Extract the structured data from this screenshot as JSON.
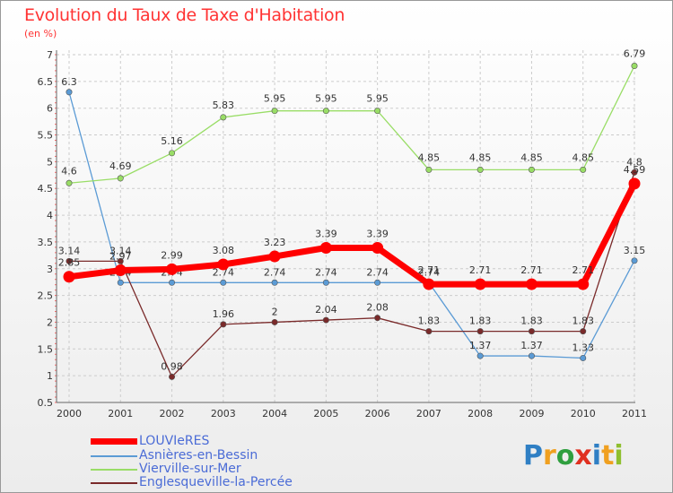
{
  "chart_title": "Evolution du Taux de Taxe d'Habitation",
  "chart_subtitle": "(en %)",
  "chart_data": {
    "type": "line",
    "title": "Evolution du Taux de Taxe d'Habitation",
    "ylabel": "(en %)",
    "xlabel": "",
    "categories": [
      "2000",
      "2001",
      "2002",
      "2003",
      "2004",
      "2005",
      "2006",
      "2007",
      "2008",
      "2009",
      "2010",
      "2011"
    ],
    "y_ticks": [
      "0.5",
      "1",
      "1.5",
      "2",
      "2.5",
      "3",
      "3.5",
      "4",
      "4.5",
      "5",
      "5.5",
      "6",
      "6.5",
      "7"
    ],
    "ylim": [
      0.5,
      7
    ],
    "grid": "horizontal dashed",
    "series": [
      {
        "name": "LOUVIeRES",
        "color": "#ff0000",
        "values": [
          2.85,
          2.97,
          2.99,
          3.08,
          3.23,
          3.39,
          3.39,
          2.71,
          2.71,
          2.71,
          2.71,
          4.59
        ],
        "labels": [
          "2.85",
          "2.97",
          "2.99",
          "3.08",
          "3.23",
          "3.39",
          "3.39",
          "2.71",
          "2.71",
          "2.71",
          "2.71",
          "4.59"
        ]
      },
      {
        "name": "Asnières-en-Bessin",
        "color": "#5b9bd5",
        "values": [
          6.3,
          2.74,
          2.74,
          2.74,
          2.74,
          2.74,
          2.74,
          2.74,
          1.37,
          1.37,
          1.33,
          3.15
        ],
        "labels": [
          "6.3",
          "2.74",
          "2.74",
          "2.74",
          "2.74",
          "2.74",
          "2.74",
          "2.74",
          "1.37",
          "1.37",
          "1.33",
          "3.15"
        ]
      },
      {
        "name": "Vierville-sur-Mer",
        "color": "#99dd66",
        "values": [
          4.6,
          4.69,
          5.16,
          5.83,
          5.95,
          5.95,
          5.95,
          4.85,
          4.85,
          4.85,
          4.85,
          6.79
        ],
        "labels": [
          "4.6",
          "4.69",
          "5.16",
          "5.83",
          "5.95",
          "5.95",
          "5.95",
          "4.85",
          "4.85",
          "4.85",
          "4.85",
          "6.79"
        ]
      },
      {
        "name": "Englesqueville-la-Percée",
        "color": "#7a2a2a",
        "values": [
          3.14,
          3.14,
          0.98,
          1.96,
          2.0,
          2.04,
          2.08,
          1.83,
          1.83,
          1.83,
          1.83,
          4.8
        ],
        "labels": [
          "3.14",
          "3.14",
          "0.98",
          "1.96",
          "2",
          "2.04",
          "2.08",
          "1.83",
          "1.83",
          "1.83",
          "1.83",
          "4.8"
        ]
      }
    ]
  },
  "logo": {
    "letters": [
      "P",
      "r",
      "o",
      "x",
      "i",
      "t",
      "i"
    ],
    "colors": [
      "#2f7fc4",
      "#f0a020",
      "#2f9f3f",
      "#e03020",
      "#2f7fc4",
      "#f0a020",
      "#8fbf2f"
    ]
  }
}
